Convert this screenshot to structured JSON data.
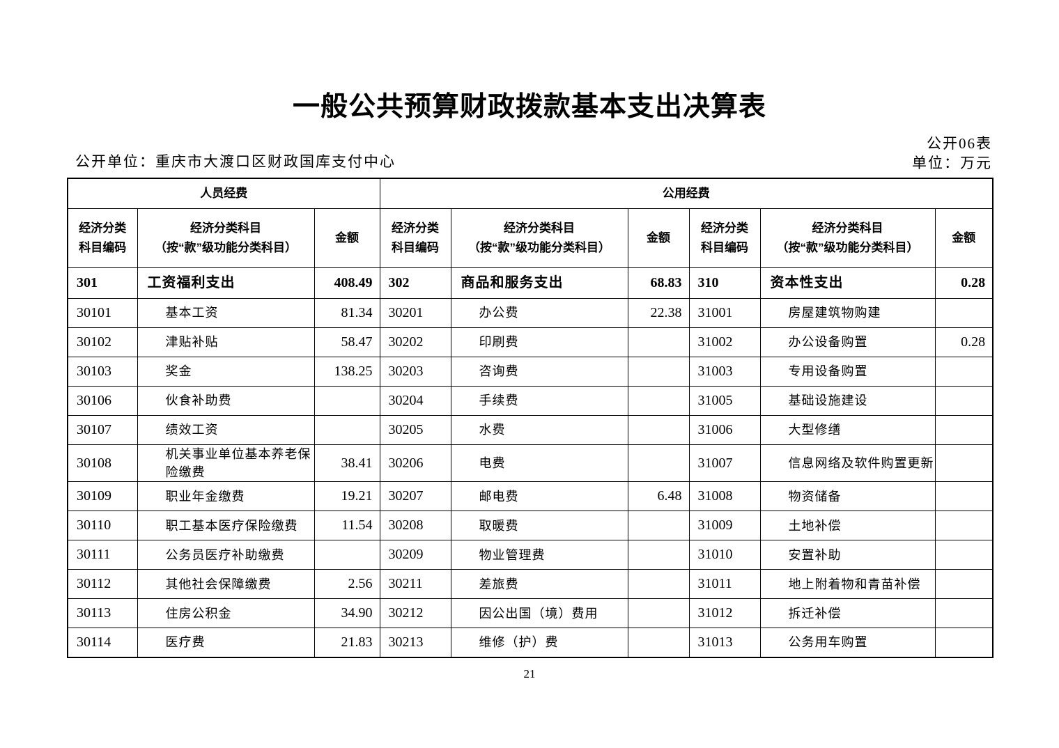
{
  "page": {
    "title": "一般公共预算财政拨款基本支出决算表",
    "form_no": "公开06表",
    "publisher": "公开单位：重庆市大渡口区财政国库支付中心",
    "unit": "单位：万元",
    "page_number": "21"
  },
  "table": {
    "group_headers": {
      "personnel": "人员经费",
      "public": "公用经费"
    },
    "column_headers": {
      "code_line1": "经济分类",
      "code_line2": "科目编码",
      "subject_line1": "经济分类科目",
      "subject_line2": "（按“款”级功能分类科目）",
      "amount": "金额"
    },
    "rows": [
      [
        "301",
        "工资福利支出",
        "408.49",
        "302",
        "商品和服务支出",
        "68.83",
        "310",
        "资本性支出",
        "0.28"
      ],
      [
        "30101",
        "基本工资",
        "81.34",
        "30201",
        "办公费",
        "22.38",
        "31001",
        "房屋建筑物购建",
        ""
      ],
      [
        "30102",
        "津贴补贴",
        "58.47",
        "30202",
        "印刷费",
        "",
        "31002",
        "办公设备购置",
        "0.28"
      ],
      [
        "30103",
        "奖金",
        "138.25",
        "30203",
        "咨询费",
        "",
        "31003",
        "专用设备购置",
        ""
      ],
      [
        "30106",
        "伙食补助费",
        "",
        "30204",
        "手续费",
        "",
        "31005",
        "基础设施建设",
        ""
      ],
      [
        "30107",
        "绩效工资",
        "",
        "30205",
        "水费",
        "",
        "31006",
        "大型修缮",
        ""
      ],
      [
        "30108",
        "机关事业单位基本养老保险缴费",
        "38.41",
        "30206",
        "电费",
        "",
        "31007",
        "信息网络及软件购置更新",
        ""
      ],
      [
        "30109",
        "职业年金缴费",
        "19.21",
        "30207",
        "邮电费",
        "6.48",
        "31008",
        "物资储备",
        ""
      ],
      [
        "30110",
        "职工基本医疗保险缴费",
        "11.54",
        "30208",
        "取暖费",
        "",
        "31009",
        "土地补偿",
        ""
      ],
      [
        "30111",
        "公务员医疗补助缴费",
        "",
        "30209",
        "物业管理费",
        "",
        "31010",
        "安置补助",
        ""
      ],
      [
        "30112",
        "其他社会保障缴费",
        "2.56",
        "30211",
        "差旅费",
        "",
        "31011",
        "地上附着物和青苗补偿",
        ""
      ],
      [
        "30113",
        "住房公积金",
        "34.90",
        "30212",
        "因公出国（境）费用",
        "",
        "31012",
        "拆迁补偿",
        ""
      ],
      [
        "30114",
        "医疗费",
        "21.83",
        "30213",
        "维修（护）费",
        "",
        "31013",
        "公务用车购置",
        ""
      ]
    ]
  }
}
